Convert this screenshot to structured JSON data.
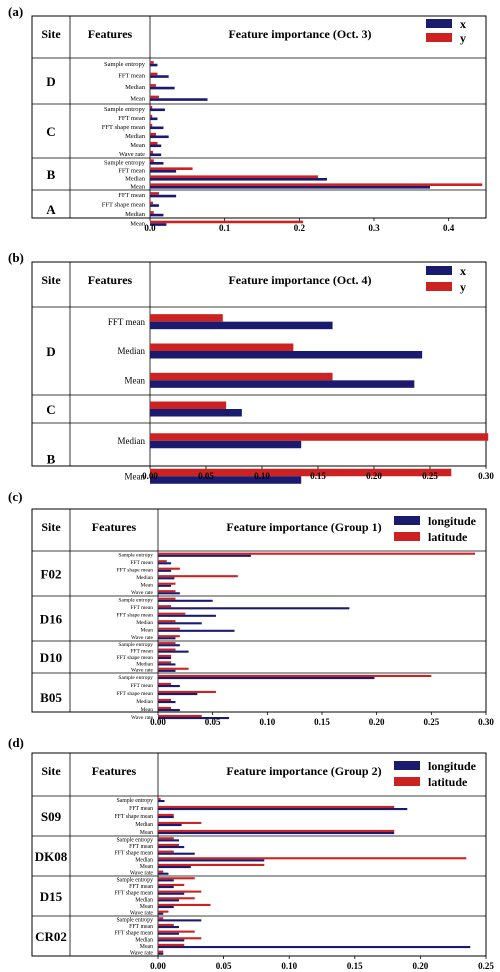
{
  "colors": {
    "series1": "#1a1a6e",
    "series2": "#cc2222"
  },
  "chart_data": [
    {
      "type": "bar",
      "orientation": "horizontal",
      "panel_label": "(a)",
      "col_site": "Site",
      "col_features": "Features",
      "title": "Feature importance (Oct. 3)",
      "xlim": [
        0,
        0.45
      ],
      "xticks": [
        "0.0",
        "0.1",
        "0.2",
        "0.3",
        "0.4"
      ],
      "legend": [
        "x",
        "y"
      ],
      "legend_position": "top-right",
      "groups": [
        {
          "site": "D",
          "features": [
            {
              "name": "Sample entropy",
              "values": [
                0.01,
                0.005
              ]
            },
            {
              "name": "FFT mean",
              "values": [
                0.025,
                0.01
              ]
            },
            {
              "name": "Median",
              "values": [
                0.033,
                0.008
              ]
            },
            {
              "name": "Mean",
              "values": [
                0.077,
                0.012
              ]
            }
          ]
        },
        {
          "site": "C",
          "features": [
            {
              "name": "Sample entropy",
              "values": [
                0.02,
                0.003
              ]
            },
            {
              "name": "FFT mean",
              "values": [
                0.01,
                0.003
              ]
            },
            {
              "name": "FFT shape mean",
              "values": [
                0.018,
                0.003
              ]
            },
            {
              "name": "Median",
              "values": [
                0.025,
                0.008
              ]
            },
            {
              "name": "Mean",
              "values": [
                0.015,
                0.01
              ]
            },
            {
              "name": "Wave rate",
              "values": [
                0.015,
                0.004
              ]
            }
          ]
        },
        {
          "site": "B",
          "features": [
            {
              "name": "Sample entropy",
              "values": [
                0.018,
                0.005
              ]
            },
            {
              "name": "FFT mean",
              "values": [
                0.035,
                0.057
              ]
            },
            {
              "name": "Median",
              "values": [
                0.237,
                0.225
              ]
            },
            {
              "name": "Mean",
              "values": [
                0.375,
                0.445
              ]
            }
          ]
        },
        {
          "site": "A",
          "features": [
            {
              "name": "FFT mean",
              "values": [
                0.035,
                0.012
              ]
            },
            {
              "name": "FFT shape mean",
              "values": [
                0.012,
                0.004
              ]
            },
            {
              "name": "Median",
              "values": [
                0.018,
                0.005
              ]
            },
            {
              "name": "Mean",
              "values": [
                0.022,
                0.205
              ]
            }
          ]
        }
      ]
    },
    {
      "type": "bar",
      "orientation": "horizontal",
      "panel_label": "(b)",
      "col_site": "Site",
      "col_features": "Features",
      "title": "Feature importance (Oct. 4)",
      "xlim": [
        0,
        0.3
      ],
      "xticks": [
        "0.00",
        "0.05",
        "0.10",
        "0.15",
        "0.20",
        "0.25",
        "0.30"
      ],
      "legend": [
        "x",
        "y"
      ],
      "legend_position": "top-right",
      "groups": [
        {
          "site": "D",
          "features": [
            {
              "name": "FFT mean",
              "values": [
                0.163,
                0.065
              ]
            },
            {
              "name": "Median",
              "values": [
                0.243,
                0.128
              ]
            },
            {
              "name": "Mean",
              "values": [
                0.236,
                0.163
              ]
            }
          ]
        },
        {
          "site": "C",
          "features": [
            {
              "name": "",
              "values": [
                0.082,
                0.068
              ]
            }
          ]
        },
        {
          "site": "B",
          "features": [
            {
              "name": "Median",
              "values": [
                0.135,
                0.302
              ]
            },
            {
              "name": "Mean",
              "values": [
                0.135,
                0.269
              ]
            }
          ]
        }
      ]
    },
    {
      "type": "bar",
      "orientation": "horizontal",
      "panel_label": "(c)",
      "col_site": "Site",
      "col_features": "Features",
      "title": "Feature importance (Group 1)",
      "xlim": [
        0,
        0.3
      ],
      "xticks": [
        "0.00",
        "0.05",
        "0.10",
        "0.15",
        "0.20",
        "0.25",
        "0.30"
      ],
      "legend": [
        "longitude",
        "latitude"
      ],
      "legend_position": "top-right",
      "groups": [
        {
          "site": "F02",
          "features": [
            {
              "name": "Sample entropy",
              "values": [
                0.085,
                0.29
              ]
            },
            {
              "name": "FFT mean",
              "values": [
                0.012,
                0.008
              ]
            },
            {
              "name": "FFT shape mean",
              "values": [
                0.012,
                0.02
              ]
            },
            {
              "name": "Median",
              "values": [
                0.015,
                0.073
              ]
            },
            {
              "name": "Mean",
              "values": [
                0.012,
                0.016
              ]
            },
            {
              "name": "Wave rate",
              "values": [
                0.02,
                0.016
              ]
            }
          ]
        },
        {
          "site": "D16",
          "features": [
            {
              "name": "Sample entropy",
              "values": [
                0.05,
                0.016
              ]
            },
            {
              "name": "FFT mean",
              "values": [
                0.175,
                0.012
              ]
            },
            {
              "name": "FFT shape mean",
              "values": [
                0.053,
                0.025
              ]
            },
            {
              "name": "Median",
              "values": [
                0.04,
                0.016
              ]
            },
            {
              "name": "Mean",
              "values": [
                0.07,
                0.02
              ]
            },
            {
              "name": "Wave rate",
              "values": [
                0.016,
                0.02
              ]
            }
          ]
        },
        {
          "site": "D10",
          "features": [
            {
              "name": "Sample entropy",
              "values": [
                0.02,
                0.016
              ]
            },
            {
              "name": "FFT mean",
              "values": [
                0.028,
                0.016
              ]
            },
            {
              "name": "FFT shape mean",
              "values": [
                0.012,
                0.012
              ]
            },
            {
              "name": "Median",
              "values": [
                0.016,
                0.012
              ]
            },
            {
              "name": "Wave rate",
              "values": [
                0.016,
                0.028
              ]
            }
          ]
        },
        {
          "site": "B05",
          "features": [
            {
              "name": "Sample entropy",
              "values": [
                0.198,
                0.25
              ]
            },
            {
              "name": "FFT mean",
              "values": [
                0.02,
                0.012
              ]
            },
            {
              "name": "FFT shape mean",
              "values": [
                0.036,
                0.053
              ]
            },
            {
              "name": "Median",
              "values": [
                0.016,
                0.012
              ]
            },
            {
              "name": "Mean",
              "values": [
                0.02,
                0.012
              ]
            },
            {
              "name": "Wave rate",
              "values": [
                0.065,
                0.04
              ]
            }
          ]
        }
      ]
    },
    {
      "type": "bar",
      "orientation": "horizontal",
      "panel_label": "(d)",
      "col_site": "Site",
      "col_features": "Features",
      "title": "Feature importance (Group 2)",
      "xlim": [
        0,
        0.25
      ],
      "xticks": [
        "0.00",
        "0.05",
        "0.10",
        "0.15",
        "0.20",
        "0.25"
      ],
      "legend": [
        "longitude",
        "latitude"
      ],
      "legend_position": "top-right",
      "groups": [
        {
          "site": "S09",
          "features": [
            {
              "name": "Sample entropy",
              "values": [
                0.005,
                0.002
              ]
            },
            {
              "name": "FFT mean",
              "values": [
                0.19,
                0.18
              ]
            },
            {
              "name": "FFT shape mean",
              "values": [
                0.012,
                0.012
              ]
            },
            {
              "name": "Median",
              "values": [
                0.018,
                0.033
              ]
            },
            {
              "name": "Mean",
              "values": [
                0.18,
                0.18
              ]
            }
          ]
        },
        {
          "site": "DK08",
          "features": [
            {
              "name": "Sample entropy",
              "values": [
                0.016,
                0.012
              ]
            },
            {
              "name": "FFT mean",
              "values": [
                0.02,
                0.016
              ]
            },
            {
              "name": "FFT shape mean",
              "values": [
                0.028,
                0.012
              ]
            },
            {
              "name": "Median",
              "values": [
                0.081,
                0.235
              ]
            },
            {
              "name": "Mean",
              "values": [
                0.025,
                0.081
              ]
            },
            {
              "name": "Wave rate",
              "values": [
                0.008,
                0.004
              ]
            }
          ]
        },
        {
          "site": "D15",
          "features": [
            {
              "name": "Sample entropy",
              "values": [
                0.012,
                0.028
              ]
            },
            {
              "name": "FFT mean",
              "values": [
                0.012,
                0.02
              ]
            },
            {
              "name": "FFT shape mean",
              "values": [
                0.02,
                0.033
              ]
            },
            {
              "name": "Median",
              "values": [
                0.016,
                0.028
              ]
            },
            {
              "name": "Mean",
              "values": [
                0.012,
                0.04
              ]
            },
            {
              "name": "Wave rate",
              "values": [
                0.004,
                0.008
              ]
            }
          ]
        },
        {
          "site": "CR02",
          "features": [
            {
              "name": "Sample entropy",
              "values": [
                0.033,
                0.004
              ]
            },
            {
              "name": "FFT mean",
              "values": [
                0.016,
                0.012
              ]
            },
            {
              "name": "FFT shape mean",
              "values": [
                0.016,
                0.028
              ]
            },
            {
              "name": "Median",
              "values": [
                0.02,
                0.033
              ]
            },
            {
              "name": "Mean",
              "values": [
                0.238,
                0.02
              ]
            },
            {
              "name": "Wave rate",
              "values": [
                0.004,
                0.004
              ]
            }
          ]
        }
      ]
    }
  ]
}
